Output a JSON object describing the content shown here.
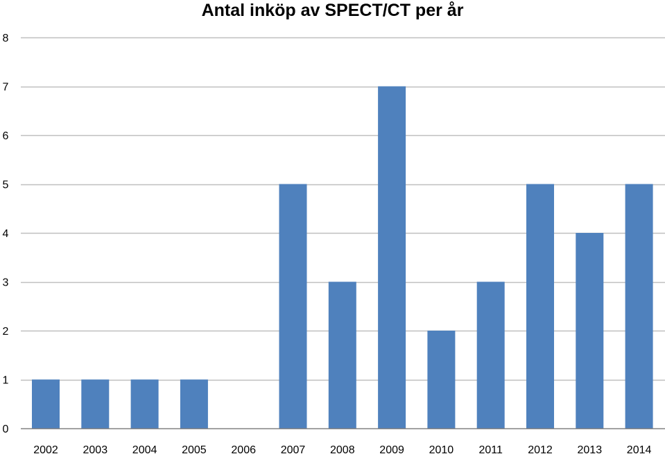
{
  "chart_data": {
    "type": "bar",
    "title": "Antal inköp av SPECT/CT per år",
    "xlabel": "",
    "ylabel": "",
    "categories": [
      "2002",
      "2003",
      "2004",
      "2005",
      "2006",
      "2007",
      "2008",
      "2009",
      "2010",
      "2011",
      "2012",
      "2013",
      "2014"
    ],
    "values": [
      1,
      1,
      1,
      1,
      0,
      5,
      3,
      7,
      2,
      3,
      5,
      4,
      5
    ],
    "ylim": [
      0,
      8
    ],
    "yticks": [
      0,
      1,
      2,
      3,
      4,
      5,
      6,
      7,
      8
    ],
    "grid": true,
    "legend": "none",
    "colors": {
      "bar": "#4f81bd",
      "grid": "#bfbfbf",
      "axis": "#808080",
      "text": "#000000"
    }
  }
}
